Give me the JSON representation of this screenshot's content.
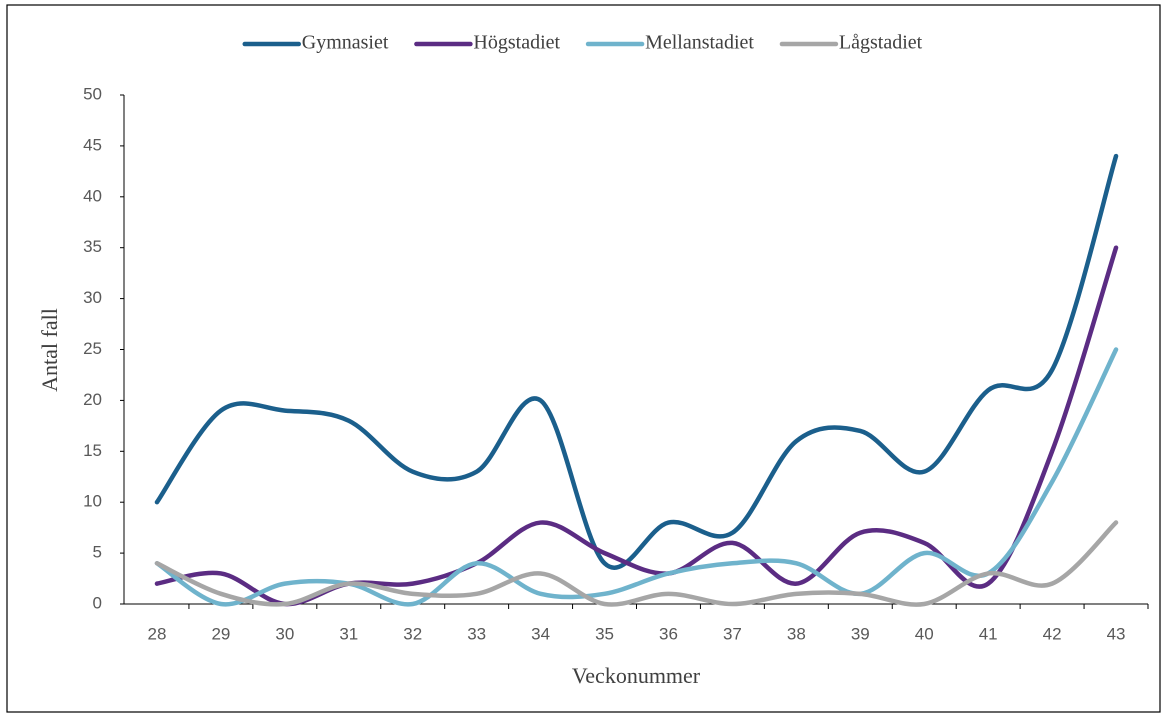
{
  "chart_data": {
    "type": "line",
    "x_label": "Veckonummer",
    "y_label": "Antal fall",
    "categories": [
      "28",
      "29",
      "30",
      "31",
      "32",
      "33",
      "34",
      "35",
      "36",
      "37",
      "38",
      "39",
      "40",
      "41",
      "42",
      "43"
    ],
    "series": [
      {
        "name": "Gymnasiet",
        "color": "#1b5f8c",
        "values": [
          10,
          19,
          19,
          18,
          13,
          13,
          20,
          4,
          8,
          7,
          16,
          17,
          13,
          21,
          23,
          44
        ]
      },
      {
        "name": "Högstadiet",
        "color": "#5b2c83",
        "values": [
          2,
          3,
          0,
          2,
          2,
          4,
          8,
          5,
          3,
          6,
          2,
          7,
          6,
          2,
          15,
          35
        ]
      },
      {
        "name": "Mellanstadiet",
        "color": "#6fb3cc",
        "values": [
          4,
          0,
          2,
          2,
          0,
          4,
          1,
          1,
          3,
          4,
          4,
          1,
          5,
          3,
          12,
          25
        ]
      },
      {
        "name": "Lågstadiet",
        "color": "#a6a6a6",
        "values": [
          4,
          1,
          0,
          2,
          1,
          1,
          3,
          0,
          1,
          0,
          1,
          1,
          0,
          3,
          2,
          8
        ]
      }
    ],
    "ylim": [
      0,
      50
    ],
    "yticks": [
      0,
      5,
      10,
      15,
      20,
      25,
      30,
      35,
      40,
      45,
      50
    ],
    "smooth": true,
    "legend": "top"
  }
}
